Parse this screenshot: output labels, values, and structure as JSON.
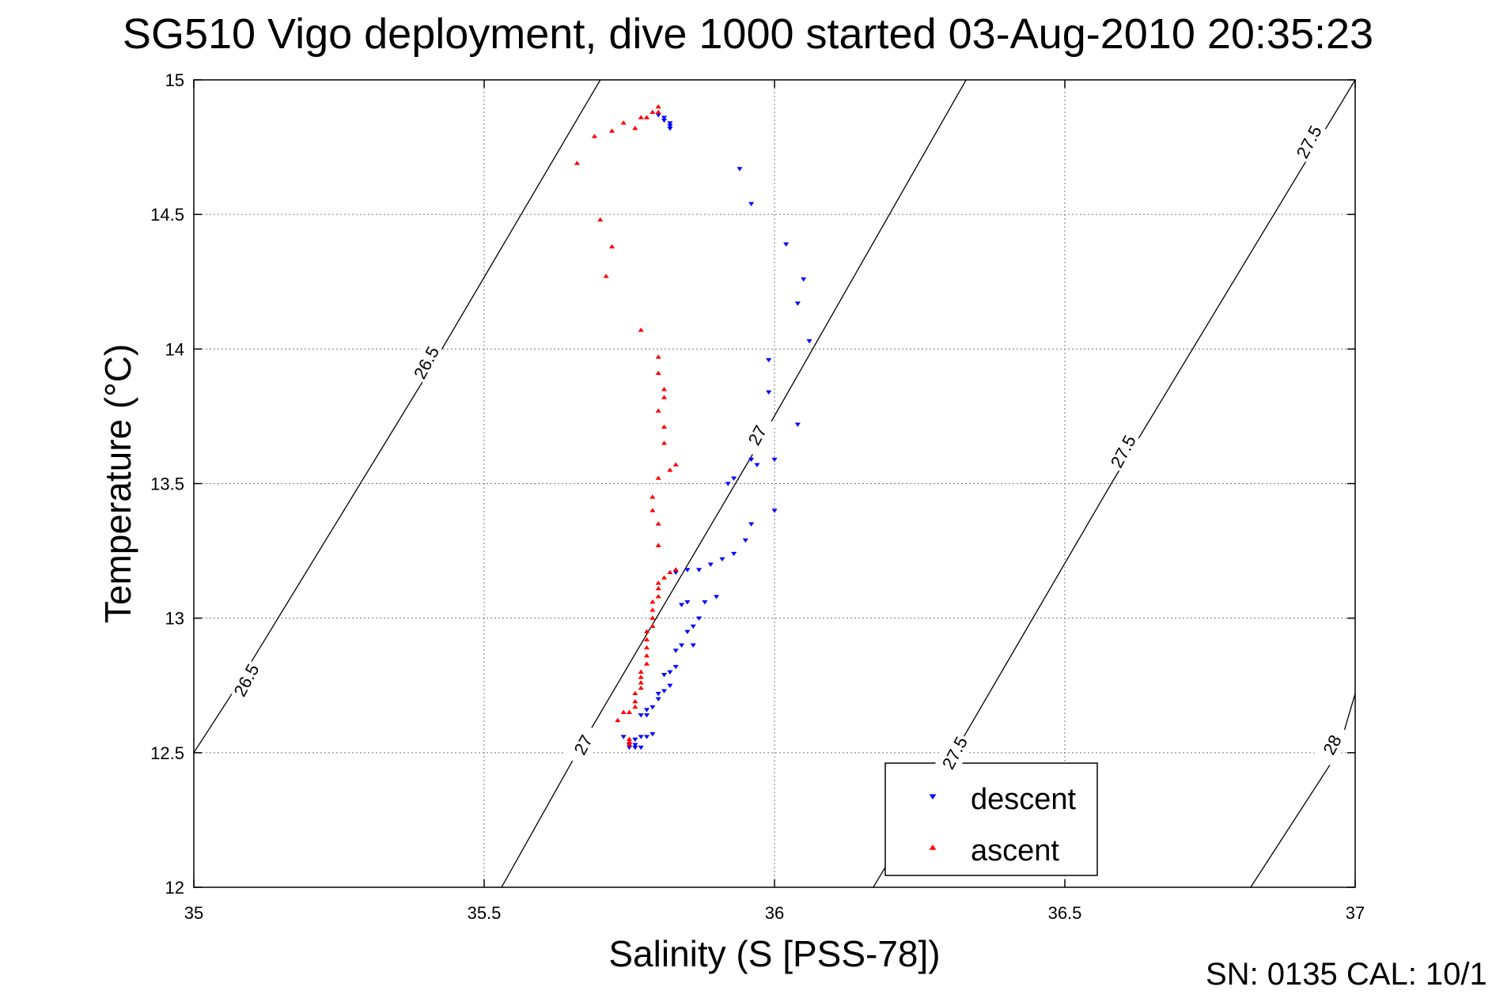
{
  "figure": {
    "title": "SG510 Vigo deployment, dive 1000 started 03-Aug-2010 20:35:23",
    "footer": "SN: 0135  CAL: 10/1"
  },
  "chart_data": {
    "type": "scatter",
    "xlabel": "Salinity (S [PSS-78])",
    "ylabel": "Temperature (°C)",
    "xlim": [
      35,
      37
    ],
    "ylim": [
      12,
      15
    ],
    "xticks": [
      35,
      35.5,
      36,
      36.5,
      37
    ],
    "xtick_labels": [
      "35",
      "35.5",
      "36",
      "36.5",
      "37"
    ],
    "yticks": [
      12,
      12.5,
      13,
      13.5,
      14,
      14.5,
      15
    ],
    "ytick_labels": [
      "12",
      "12.5",
      "13",
      "13.5",
      "14",
      "14.5",
      "15"
    ],
    "grid": true,
    "legend_position": "bottom-right",
    "isopycnals": [
      {
        "label": "26.5",
        "points": [
          [
            35,
            12.5
          ],
          [
            35.06,
            12.7
          ],
          [
            35.4,
            13.9
          ],
          [
            35.7,
            15
          ]
        ]
      },
      {
        "label": "27",
        "points": [
          [
            35.53,
            12
          ],
          [
            35.66,
            12.5
          ],
          [
            35.96,
            13.6
          ],
          [
            36.33,
            15
          ]
        ]
      },
      {
        "label": "27.5",
        "points": [
          [
            36.17,
            12
          ],
          [
            36.31,
            12.5
          ],
          [
            36.58,
            13.5
          ],
          [
            37,
            15
          ]
        ]
      },
      {
        "label": "28",
        "points": [
          [
            36.82,
            12
          ],
          [
            36.97,
            12.5
          ],
          [
            37,
            12.72
          ]
        ]
      }
    ],
    "isopycnal_labels": [
      {
        "text": "26.5",
        "x": 35.4,
        "y": 13.95
      },
      {
        "text": "26.5",
        "x": 35.09,
        "y": 12.77
      },
      {
        "text": "27",
        "x": 35.97,
        "y": 15.82
      },
      {
        "text": "27",
        "x": 35.97,
        "y": 13.68
      },
      {
        "text": "27",
        "x": 35.67,
        "y": 12.53
      },
      {
        "text": "27.5",
        "x": 36.92,
        "y": 14.77
      },
      {
        "text": "27.5",
        "x": 36.6,
        "y": 13.62
      },
      {
        "text": "27.5",
        "x": 36.31,
        "y": 12.5
      },
      {
        "text": "28",
        "x": 36.96,
        "y": 12.53
      }
    ],
    "series": [
      {
        "name": "descent",
        "color": "#0000ff",
        "marker": "triangle-down",
        "points": [
          [
            35.8,
            14.87
          ],
          [
            35.81,
            14.86
          ],
          [
            35.81,
            14.85
          ],
          [
            35.82,
            14.84
          ],
          [
            35.82,
            14.83
          ],
          [
            35.82,
            14.82
          ],
          [
            35.94,
            14.67
          ],
          [
            35.96,
            14.54
          ],
          [
            36.02,
            14.39
          ],
          [
            36.05,
            14.26
          ],
          [
            36.04,
            14.17
          ],
          [
            36.06,
            14.03
          ],
          [
            35.99,
            13.96
          ],
          [
            35.99,
            13.84
          ],
          [
            36.04,
            13.72
          ],
          [
            35.96,
            13.59
          ],
          [
            35.97,
            13.57
          ],
          [
            36,
            13.59
          ],
          [
            35.93,
            13.52
          ],
          [
            35.92,
            13.5
          ],
          [
            36,
            13.4
          ],
          [
            35.96,
            13.35
          ],
          [
            35.95,
            13.29
          ],
          [
            35.93,
            13.24
          ],
          [
            35.91,
            13.22
          ],
          [
            35.89,
            13.2
          ],
          [
            35.87,
            13.18
          ],
          [
            35.85,
            13.18
          ],
          [
            35.83,
            13.17
          ],
          [
            35.9,
            13.08
          ],
          [
            35.88,
            13.06
          ],
          [
            35.85,
            13.06
          ],
          [
            35.84,
            13.05
          ],
          [
            35.87,
            13
          ],
          [
            35.86,
            12.97
          ],
          [
            35.85,
            12.95
          ],
          [
            35.86,
            12.9
          ],
          [
            35.84,
            12.9
          ],
          [
            35.83,
            12.88
          ],
          [
            35.83,
            12.82
          ],
          [
            35.82,
            12.8
          ],
          [
            35.81,
            12.79
          ],
          [
            35.82,
            12.75
          ],
          [
            35.81,
            12.73
          ],
          [
            35.8,
            12.72
          ],
          [
            35.8,
            12.7
          ],
          [
            35.79,
            12.67
          ],
          [
            35.78,
            12.66
          ],
          [
            35.78,
            12.64
          ],
          [
            35.77,
            12.64
          ],
          [
            35.79,
            12.57
          ],
          [
            35.78,
            12.56
          ],
          [
            35.77,
            12.56
          ],
          [
            35.76,
            12.55
          ],
          [
            35.74,
            12.56
          ],
          [
            35.75,
            12.53
          ],
          [
            35.76,
            12.53
          ],
          [
            35.77,
            12.52
          ],
          [
            35.76,
            12.52
          ],
          [
            35.75,
            12.52
          ]
        ]
      },
      {
        "name": "ascent",
        "color": "#ff0000",
        "marker": "triangle-up",
        "points": [
          [
            35.75,
            12.53
          ],
          [
            35.75,
            12.54
          ],
          [
            35.75,
            12.55
          ],
          [
            35.73,
            12.62
          ],
          [
            35.74,
            12.65
          ],
          [
            35.75,
            12.65
          ],
          [
            35.76,
            12.67
          ],
          [
            35.76,
            12.69
          ],
          [
            35.76,
            12.72
          ],
          [
            35.77,
            12.74
          ],
          [
            35.77,
            12.76
          ],
          [
            35.77,
            12.78
          ],
          [
            35.77,
            12.8
          ],
          [
            35.78,
            12.83
          ],
          [
            35.78,
            12.86
          ],
          [
            35.78,
            12.89
          ],
          [
            35.78,
            12.92
          ],
          [
            35.78,
            12.95
          ],
          [
            35.79,
            12.97
          ],
          [
            35.79,
            13
          ],
          [
            35.79,
            13.03
          ],
          [
            35.79,
            13.06
          ],
          [
            35.8,
            13.08
          ],
          [
            35.8,
            13.11
          ],
          [
            35.8,
            13.13
          ],
          [
            35.81,
            13.15
          ],
          [
            35.82,
            13.17
          ],
          [
            35.83,
            13.18
          ],
          [
            35.8,
            13.27
          ],
          [
            35.8,
            13.35
          ],
          [
            35.79,
            13.4
          ],
          [
            35.79,
            13.45
          ],
          [
            35.8,
            13.52
          ],
          [
            35.82,
            13.55
          ],
          [
            35.83,
            13.57
          ],
          [
            35.81,
            13.65
          ],
          [
            35.81,
            13.71
          ],
          [
            35.8,
            13.77
          ],
          [
            35.81,
            13.82
          ],
          [
            35.81,
            13.85
          ],
          [
            35.8,
            13.91
          ],
          [
            35.8,
            13.97
          ],
          [
            35.77,
            14.07
          ],
          [
            35.71,
            14.27
          ],
          [
            35.72,
            14.38
          ],
          [
            35.7,
            14.48
          ],
          [
            35.66,
            14.69
          ],
          [
            35.69,
            14.79
          ],
          [
            35.72,
            14.81
          ],
          [
            35.76,
            14.82
          ],
          [
            35.74,
            14.84
          ],
          [
            35.77,
            14.86
          ],
          [
            35.78,
            14.86
          ],
          [
            35.79,
            14.88
          ],
          [
            35.8,
            14.88
          ],
          [
            35.8,
            14.9
          ]
        ]
      }
    ]
  }
}
